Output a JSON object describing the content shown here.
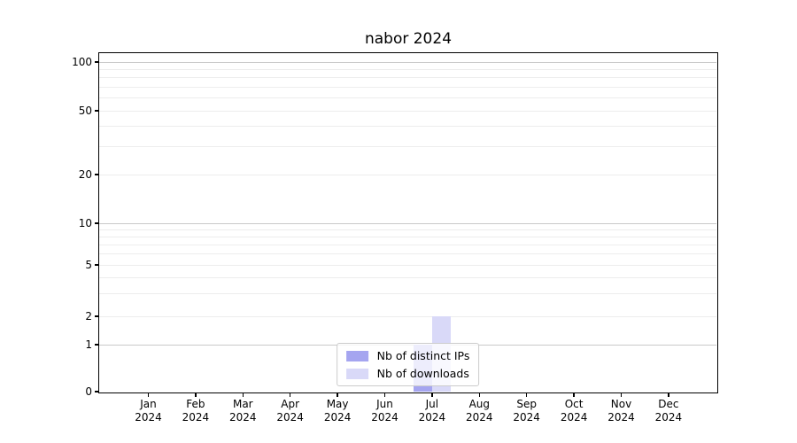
{
  "chart_data": {
    "type": "bar",
    "title": "nabor 2024",
    "xlabel": "",
    "ylabel": "",
    "categories": [
      "Jan",
      "Feb",
      "Mar",
      "Apr",
      "May",
      "Jun",
      "Jul",
      "Aug",
      "Sep",
      "Oct",
      "Nov",
      "Dec"
    ],
    "year": "2024",
    "series": [
      {
        "name": "Nb of distinct IPs",
        "color": "#a5a5f0",
        "values": [
          0,
          0,
          0,
          0,
          0,
          0,
          1,
          0,
          0,
          0,
          0,
          0
        ]
      },
      {
        "name": "Nb of downloads",
        "color": "#d9d9f8",
        "values": [
          0,
          0,
          0,
          0,
          0,
          0,
          2,
          0,
          0,
          0,
          0,
          0
        ]
      }
    ],
    "yscale": "symlog",
    "yticks": [
      0,
      1,
      2,
      5,
      10,
      20,
      50,
      100
    ],
    "ylim": [
      0,
      113
    ],
    "grid": "horizontal major+minor",
    "legend_position": "lower center"
  }
}
